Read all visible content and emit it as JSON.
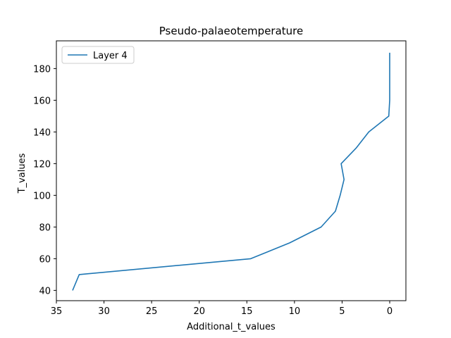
{
  "chart_data": {
    "type": "line",
    "title": "Pseudo-palaeotemperature",
    "xlabel": "Additional_t_values",
    "ylabel": "T_values",
    "x_inverted": true,
    "xlim": [
      35.0,
      -1.7
    ],
    "ylim": [
      33.5,
      197.5
    ],
    "xticks": [
      35,
      30,
      25,
      20,
      15,
      10,
      5,
      0
    ],
    "yticks": [
      40,
      60,
      80,
      100,
      120,
      140,
      160,
      180
    ],
    "grid": false,
    "legend_position": "top-left",
    "series": [
      {
        "name": "Layer 4",
        "color": "#1f77b4",
        "points": [
          {
            "x": 33.3,
            "y": 40
          },
          {
            "x": 32.6,
            "y": 50
          },
          {
            "x": 14.6,
            "y": 60
          },
          {
            "x": 10.5,
            "y": 70
          },
          {
            "x": 7.2,
            "y": 80
          },
          {
            "x": 5.7,
            "y": 90
          },
          {
            "x": 5.2,
            "y": 100
          },
          {
            "x": 4.8,
            "y": 110
          },
          {
            "x": 5.1,
            "y": 120
          },
          {
            "x": 3.5,
            "y": 130
          },
          {
            "x": 2.2,
            "y": 140
          },
          {
            "x": 0.1,
            "y": 150
          },
          {
            "x": 0.0,
            "y": 160
          },
          {
            "x": 0.0,
            "y": 170
          },
          {
            "x": 0.0,
            "y": 180
          },
          {
            "x": 0.0,
            "y": 190
          }
        ]
      }
    ]
  }
}
